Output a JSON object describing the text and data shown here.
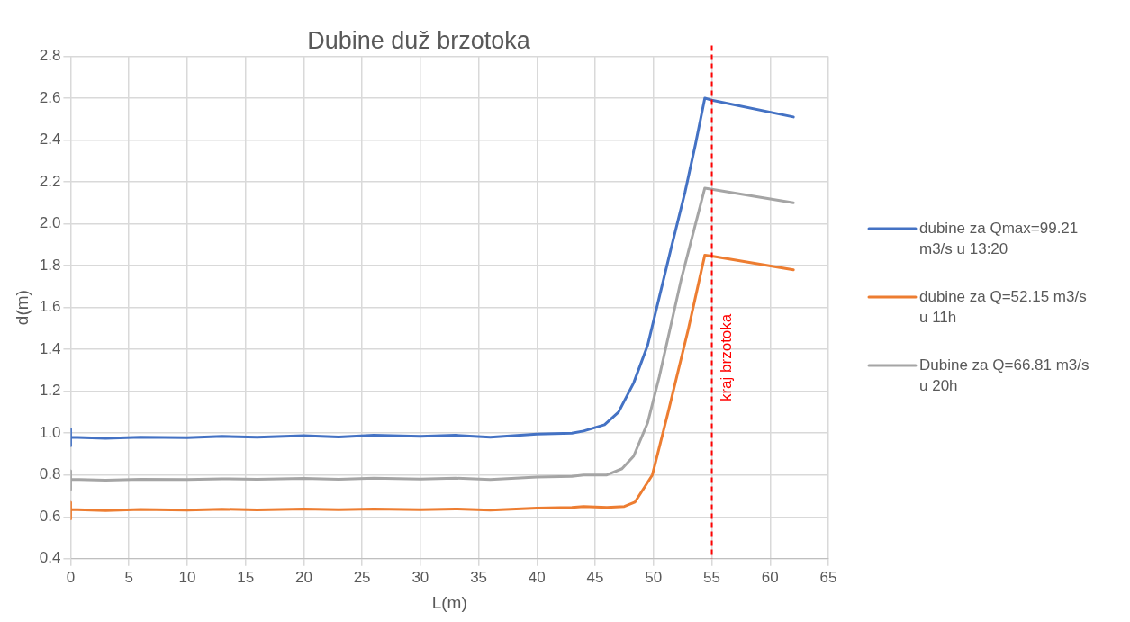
{
  "chart_data": {
    "type": "line",
    "title": "Dubine duž brzotoka",
    "xlabel": "L(m)",
    "ylabel": "d(m)",
    "xlim": [
      0,
      65
    ],
    "xticks": [
      0,
      5,
      10,
      15,
      20,
      25,
      30,
      35,
      40,
      45,
      50,
      55,
      60,
      65
    ],
    "ylim": [
      0.4,
      2.8
    ],
    "yticks": [
      {
        "value": 0.4,
        "label": "0.4"
      },
      {
        "value": 0.6,
        "label": "0.6"
      },
      {
        "value": 0.8,
        "label": "0.8"
      },
      {
        "value": 1.0,
        "label": "1.0"
      },
      {
        "value": 1.2,
        "label": "1.2"
      },
      {
        "value": 1.4,
        "label": "1.4"
      },
      {
        "value": 1.6,
        "label": "1.6"
      },
      {
        "value": 1.8,
        "label": "1.8"
      },
      {
        "value": 2.0,
        "label": "2.0"
      },
      {
        "value": 2.2,
        "label": "2.2"
      },
      {
        "value": 2.4,
        "label": "2.4"
      },
      {
        "value": 2.6,
        "label": "2.6"
      },
      {
        "value": 2.8,
        "label": "2.8"
      }
    ],
    "grid": true,
    "legend": "right",
    "marker": "none",
    "line_style": "solid",
    "series": [
      {
        "name": "dubine za Qmax=99.21 m3/s u 13:20",
        "color": "#4472c4",
        "x": [
          0,
          0,
          0,
          3,
          6,
          10,
          13,
          16,
          20,
          23,
          26,
          30,
          33,
          36,
          40,
          43,
          44,
          45.8,
          47,
          48.3,
          49.5,
          50.5,
          51.5,
          52.7,
          53.6,
          54.4,
          55,
          62
        ],
        "values": [
          1.02,
          0.94,
          0.98,
          0.975,
          0.98,
          0.978,
          0.985,
          0.98,
          0.988,
          0.982,
          0.99,
          0.985,
          0.99,
          0.98,
          0.995,
          1.0,
          1.01,
          1.04,
          1.1,
          1.24,
          1.42,
          1.65,
          1.88,
          2.15,
          2.38,
          2.6,
          2.59,
          2.51
        ]
      },
      {
        "name": "dubine za Q=52.15 m3/s u 11h",
        "color": "#ed7d31",
        "x": [
          0,
          0,
          0,
          3,
          6,
          10,
          13,
          16,
          20,
          23,
          26,
          30,
          33,
          36,
          40,
          43,
          44,
          46,
          47.5,
          48.4,
          49.9,
          51.3,
          53,
          54.4,
          55,
          62
        ],
        "values": [
          0.67,
          0.59,
          0.635,
          0.63,
          0.635,
          0.632,
          0.637,
          0.633,
          0.638,
          0.634,
          0.638,
          0.634,
          0.638,
          0.632,
          0.642,
          0.645,
          0.65,
          0.645,
          0.65,
          0.67,
          0.8,
          1.11,
          1.5,
          1.85,
          1.845,
          1.78
        ]
      },
      {
        "name": "Dubine za Q=66.81 m3/s u 20h",
        "color": "#a5a5a5",
        "x": [
          0,
          0,
          0,
          3,
          6,
          10,
          13,
          16,
          20,
          23,
          26,
          30,
          33,
          36,
          40,
          43,
          44,
          46,
          47.3,
          48.3,
          49.5,
          50.5,
          52.4,
          54.4,
          55,
          62
        ],
        "values": [
          0.82,
          0.73,
          0.78,
          0.775,
          0.78,
          0.778,
          0.782,
          0.779,
          0.784,
          0.78,
          0.785,
          0.781,
          0.785,
          0.778,
          0.79,
          0.793,
          0.8,
          0.8,
          0.83,
          0.89,
          1.05,
          1.27,
          1.74,
          2.17,
          2.165,
          2.1
        ]
      }
    ],
    "ref_lines": [
      {
        "axis": "x",
        "value": 55,
        "label": "kraj brzotoka",
        "color": "#ff0000",
        "line_style": "dashed"
      }
    ]
  }
}
